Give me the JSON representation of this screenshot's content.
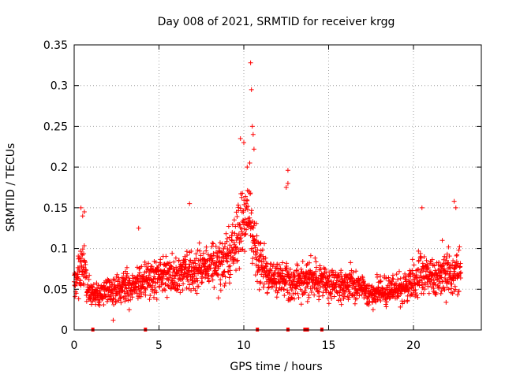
{
  "chart_data": {
    "type": "scatter",
    "title": "Day 008 of 2021, SRMTID for receiver krgg",
    "xlabel": "GPS time / hours",
    "ylabel": "SRMTID / TECUs",
    "xlim": [
      0,
      24
    ],
    "ylim": [
      0,
      0.35
    ],
    "xticks": [
      0,
      5,
      10,
      15,
      20
    ],
    "yticks": [
      0,
      0.05,
      0.1,
      0.15,
      0.2,
      0.25,
      0.3,
      0.35
    ],
    "ytick_labels": [
      "0",
      "0.05",
      "0.1",
      "0.15",
      "0.2",
      "0.25",
      "0.3",
      "0.35"
    ],
    "grid": true,
    "marker": "+",
    "color": "#ff0000",
    "profile_note": "dense scatter, roughly 1 point per ~0.5 min; values estimated from the plot",
    "baseline_profile": [
      [
        0.0,
        0.055
      ],
      [
        0.3,
        0.07
      ],
      [
        0.5,
        0.085
      ],
      [
        0.8,
        0.05
      ],
      [
        1.5,
        0.045
      ],
      [
        2.5,
        0.05
      ],
      [
        3.5,
        0.055
      ],
      [
        4.5,
        0.065
      ],
      [
        5.5,
        0.065
      ],
      [
        6.5,
        0.07
      ],
      [
        7.5,
        0.075
      ],
      [
        8.5,
        0.08
      ],
      [
        9.2,
        0.09
      ],
      [
        9.8,
        0.12
      ],
      [
        10.3,
        0.14
      ],
      [
        10.8,
        0.09
      ],
      [
        11.5,
        0.065
      ],
      [
        12.5,
        0.06
      ],
      [
        13.5,
        0.06
      ],
      [
        14.5,
        0.06
      ],
      [
        15.5,
        0.055
      ],
      [
        16.5,
        0.055
      ],
      [
        17.5,
        0.045
      ],
      [
        18.5,
        0.05
      ],
      [
        19.5,
        0.05
      ],
      [
        20.5,
        0.07
      ],
      [
        21.5,
        0.065
      ],
      [
        22.5,
        0.07
      ],
      [
        22.8,
        0.07
      ]
    ],
    "notable_points": [
      {
        "x": 0.4,
        "y": 0.15
      },
      {
        "x": 0.5,
        "y": 0.14
      },
      {
        "x": 0.6,
        "y": 0.145
      },
      {
        "x": 3.8,
        "y": 0.125
      },
      {
        "x": 6.8,
        "y": 0.155
      },
      {
        "x": 9.8,
        "y": 0.235
      },
      {
        "x": 10.0,
        "y": 0.23
      },
      {
        "x": 10.2,
        "y": 0.2
      },
      {
        "x": 10.4,
        "y": 0.328
      },
      {
        "x": 10.45,
        "y": 0.295
      },
      {
        "x": 10.5,
        "y": 0.25
      },
      {
        "x": 10.55,
        "y": 0.24
      },
      {
        "x": 10.6,
        "y": 0.222
      },
      {
        "x": 10.35,
        "y": 0.205
      },
      {
        "x": 12.6,
        "y": 0.196
      },
      {
        "x": 12.6,
        "y": 0.18
      },
      {
        "x": 12.5,
        "y": 0.175
      },
      {
        "x": 20.5,
        "y": 0.15
      },
      {
        "x": 22.4,
        "y": 0.158
      },
      {
        "x": 22.5,
        "y": 0.15
      },
      {
        "x": 21.7,
        "y": 0.11
      },
      {
        "x": 2.3,
        "y": 0.012
      }
    ],
    "zero_markers_x": [
      1.1,
      4.2,
      10.8,
      12.6,
      13.6,
      13.75,
      14.6
    ]
  }
}
